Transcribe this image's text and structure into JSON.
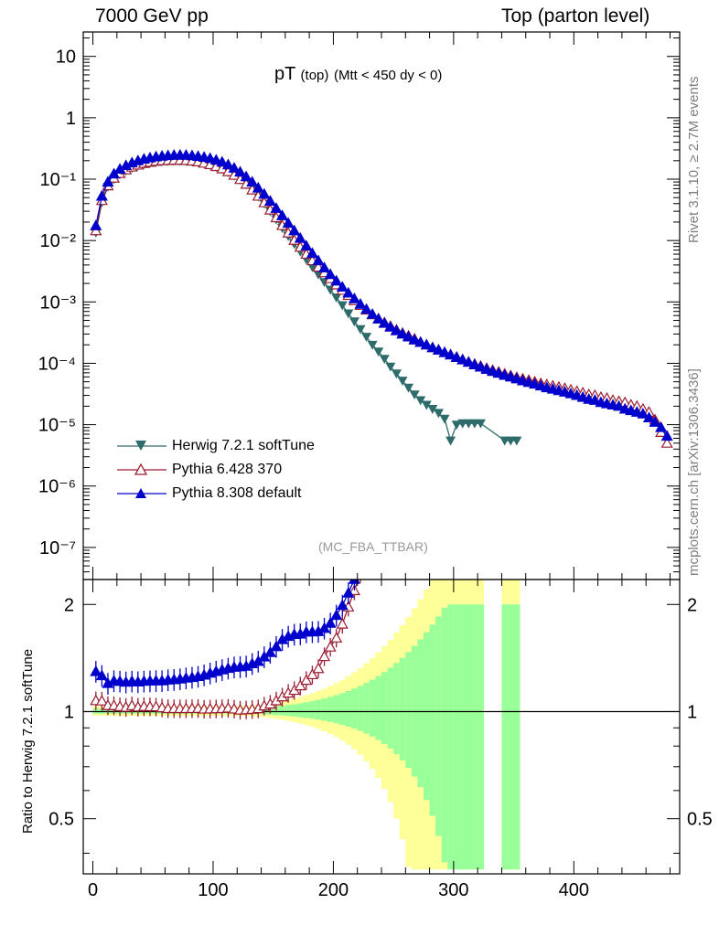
{
  "header": {
    "left": "7000 GeV pp",
    "right": "Top (parton level)"
  },
  "side_labels": {
    "top": "Rivet 3.1.10, ≥ 2.7M events",
    "bottom": "mcplots.cern.ch [arXiv:1306.3436]"
  },
  "plot_title": {
    "main": "pT",
    "sub1": "(top)",
    "sub2": "(Mtt < 450 dy < 0)"
  },
  "watermark": "(MC_FBA_TTBAR)",
  "ratio_ylabel": "Ratio to Herwig 7.2.1 softTune",
  "colors": {
    "herwig": "#2e6b6b",
    "pythia6": "#9b1b30",
    "pythia8": "#0000cc",
    "band_yellow": "#ffff99",
    "band_green": "#99ff99"
  },
  "chart_data": {
    "type": "line",
    "x_range": [
      -8,
      488
    ],
    "main": {
      "yscale": "log",
      "ylim": [
        3e-08,
        25
      ],
      "ticks": [
        {
          "value": 10,
          "label": "10"
        },
        {
          "value": 1,
          "label": "1"
        },
        {
          "value": 0.1,
          "label": "10⁻¹"
        },
        {
          "value": 0.01,
          "label": "10⁻²"
        },
        {
          "value": 0.001,
          "label": "10⁻³"
        },
        {
          "value": 0.0001,
          "label": "10⁻⁴"
        },
        {
          "value": 1e-05,
          "label": "10⁻⁵"
        },
        {
          "value": 1e-06,
          "label": "10⁻⁶"
        },
        {
          "value": 1e-07,
          "label": "10⁻⁷"
        }
      ]
    },
    "ratio": {
      "yscale": "log",
      "ylim": [
        0.35,
        2.35
      ],
      "ticks": [
        {
          "value": 2,
          "label": "2"
        },
        {
          "value": 1,
          "label": "1"
        },
        {
          "value": 0.5,
          "label": "0.5"
        }
      ]
    },
    "x_ticks": [
      0,
      100,
      200,
      300,
      400
    ],
    "legend": [
      {
        "key": "herwig",
        "label": "Herwig 7.2.1 softTune",
        "marker": "triangle-down-filled"
      },
      {
        "key": "pythia6",
        "label": "Pythia 6.428 370",
        "marker": "triangle-up-open"
      },
      {
        "key": "pythia8",
        "label": "Pythia 8.308 default",
        "marker": "triangle-up-filled"
      }
    ],
    "series": [
      {
        "name": "Herwig 7.2.1 softTune",
        "key": "herwig",
        "x": [
          2.5,
          7.5,
          12.5,
          17.5,
          22.5,
          27.5,
          32.5,
          37.5,
          42.5,
          47.5,
          52.5,
          57.5,
          62.5,
          67.5,
          72.5,
          77.5,
          82.5,
          87.5,
          92.5,
          97.5,
          102.5,
          107.5,
          112.5,
          117.5,
          122.5,
          127.5,
          132.5,
          137.5,
          142.5,
          147.5,
          152.5,
          157.5,
          162.5,
          167.5,
          172.5,
          177.5,
          182.5,
          187.5,
          192.5,
          197.5,
          202.5,
          207.5,
          212.5,
          217.5,
          222.5,
          227.5,
          232.5,
          237.5,
          242.5,
          247.5,
          252.5,
          257.5,
          262.5,
          267.5,
          272.5,
          277.5,
          282.5,
          287.5,
          292.5,
          297.5,
          302.5,
          307.5,
          312.5,
          317.5,
          322.5,
          342.5,
          347.5,
          352.5
        ],
        "y": [
          0.0135,
          0.042,
          0.075,
          0.1,
          0.12,
          0.138,
          0.152,
          0.165,
          0.175,
          0.183,
          0.19,
          0.195,
          0.198,
          0.2,
          0.2,
          0.198,
          0.194,
          0.188,
          0.18,
          0.17,
          0.158,
          0.145,
          0.13,
          0.114,
          0.098,
          0.082,
          0.066,
          0.052,
          0.04,
          0.03,
          0.022,
          0.016,
          0.0118,
          0.0088,
          0.0066,
          0.0049,
          0.0037,
          0.0028,
          0.0021,
          0.00158,
          0.00118,
          0.00088,
          0.00065,
          0.00048,
          0.00036,
          0.00027,
          0.0002,
          0.000155,
          0.000118,
          8.8e-05,
          6.8e-05,
          5.2e-05,
          4e-05,
          3.1e-05,
          2.5e-05,
          2.1e-05,
          1.8e-05,
          1.55e-05,
          1.25e-05,
          5.5e-06,
          1e-05,
          1.05e-05,
          1.05e-05,
          1.05e-05,
          1.05e-05,
          5.5e-06,
          5.5e-06,
          5.5e-06
        ],
        "yerr_rel": 0.05
      },
      {
        "name": "Pythia 6.428 370",
        "key": "pythia6",
        "x": [
          2.5,
          7.5,
          12.5,
          17.5,
          22.5,
          27.5,
          32.5,
          37.5,
          42.5,
          47.5,
          52.5,
          57.5,
          62.5,
          67.5,
          72.5,
          77.5,
          82.5,
          87.5,
          92.5,
          97.5,
          102.5,
          107.5,
          112.5,
          117.5,
          122.5,
          127.5,
          132.5,
          137.5,
          142.5,
          147.5,
          152.5,
          157.5,
          162.5,
          167.5,
          172.5,
          177.5,
          182.5,
          187.5,
          192.5,
          197.5,
          202.5,
          207.5,
          212.5,
          217.5,
          222.5,
          227.5,
          232.5,
          237.5,
          242.5,
          247.5,
          252.5,
          257.5,
          262.5,
          267.5,
          272.5,
          277.5,
          282.5,
          287.5,
          292.5,
          297.5,
          302.5,
          307.5,
          312.5,
          317.5,
          322.5,
          327.5,
          332.5,
          337.5,
          342.5,
          347.5,
          352.5,
          357.5,
          362.5,
          367.5,
          372.5,
          377.5,
          382.5,
          387.5,
          392.5,
          397.5,
          402.5,
          407.5,
          412.5,
          417.5,
          422.5,
          427.5,
          432.5,
          437.5,
          442.5,
          447.5,
          452.5,
          457.5,
          462.5,
          467.5,
          472.5,
          477.5
        ],
        "y": [
          0.0145,
          0.045,
          0.078,
          0.104,
          0.124,
          0.142,
          0.158,
          0.17,
          0.181,
          0.189,
          0.196,
          0.2,
          0.202,
          0.204,
          0.204,
          0.202,
          0.198,
          0.192,
          0.183,
          0.173,
          0.161,
          0.148,
          0.133,
          0.116,
          0.099,
          0.083,
          0.067,
          0.053,
          0.0415,
          0.0315,
          0.0236,
          0.0176,
          0.0133,
          0.0101,
          0.0078,
          0.006,
          0.0047,
          0.0037,
          0.003,
          0.0024,
          0.0019,
          0.00155,
          0.00128,
          0.00105,
          0.00088,
          0.00074,
          0.00062,
          0.00053,
          0.00046,
          0.0004,
          0.00035,
          0.00031,
          0.00028,
          0.00025,
          0.00022,
          0.0002,
          0.00018,
          0.000165,
          0.00015,
          0.000138,
          0.000126,
          0.000115,
          0.000105,
          9.7e-05,
          9e-05,
          8.3e-05,
          7.7e-05,
          7.2e-05,
          6.7e-05,
          6.3e-05,
          5.9e-05,
          5.6e-05,
          5.3e-05,
          5e-05,
          4.7e-05,
          4.5e-05,
          4.3e-05,
          4.1e-05,
          3.9e-05,
          3.7e-05,
          3.5e-05,
          3.3e-05,
          3.1e-05,
          3e-05,
          2.8e-05,
          2.7e-05,
          2.5e-05,
          2.4e-05,
          2.3e-05,
          2.1e-05,
          2e-05,
          1.8e-05,
          1.6e-05,
          1.2e-05,
          7.5e-06,
          5e-06
        ],
        "yerr_rel": 0.06
      },
      {
        "name": "Pythia 8.308 default",
        "key": "pythia8",
        "x": [
          2.5,
          7.5,
          12.5,
          17.5,
          22.5,
          27.5,
          32.5,
          37.5,
          42.5,
          47.5,
          52.5,
          57.5,
          62.5,
          67.5,
          72.5,
          77.5,
          82.5,
          87.5,
          92.5,
          97.5,
          102.5,
          107.5,
          112.5,
          117.5,
          122.5,
          127.5,
          132.5,
          137.5,
          142.5,
          147.5,
          152.5,
          157.5,
          162.5,
          167.5,
          172.5,
          177.5,
          182.5,
          187.5,
          192.5,
          197.5,
          202.5,
          207.5,
          212.5,
          217.5,
          222.5,
          227.5,
          232.5,
          237.5,
          242.5,
          247.5,
          252.5,
          257.5,
          262.5,
          267.5,
          272.5,
          277.5,
          282.5,
          287.5,
          292.5,
          297.5,
          302.5,
          307.5,
          312.5,
          317.5,
          322.5,
          327.5,
          332.5,
          337.5,
          342.5,
          347.5,
          352.5,
          357.5,
          362.5,
          367.5,
          372.5,
          377.5,
          382.5,
          387.5,
          392.5,
          397.5,
          402.5,
          407.5,
          412.5,
          417.5,
          422.5,
          427.5,
          432.5,
          437.5,
          442.5,
          447.5,
          452.5,
          457.5,
          462.5,
          467.5,
          472.5,
          477.5
        ],
        "y": [
          0.0175,
          0.053,
          0.09,
          0.122,
          0.146,
          0.167,
          0.185,
          0.2,
          0.213,
          0.223,
          0.232,
          0.238,
          0.243,
          0.246,
          0.247,
          0.246,
          0.242,
          0.236,
          0.228,
          0.218,
          0.205,
          0.19,
          0.172,
          0.152,
          0.131,
          0.11,
          0.09,
          0.072,
          0.057,
          0.044,
          0.0335,
          0.0255,
          0.0192,
          0.0145,
          0.0109,
          0.0082,
          0.0062,
          0.0047,
          0.0036,
          0.0028,
          0.0022,
          0.00175,
          0.0014,
          0.00113,
          0.00092,
          0.00076,
          0.00063,
          0.00053,
          0.00045,
          0.00039,
          0.00034,
          0.0003,
          0.00027,
          0.00024,
          0.00022,
          0.0002,
          0.00018,
          0.000165,
          0.00015,
          0.000137,
          0.000125,
          0.000114,
          0.000104,
          9.5e-05,
          8.7e-05,
          8e-05,
          7.4e-05,
          6.9e-05,
          6.4e-05,
          6e-05,
          5.6e-05,
          5.2e-05,
          4.9e-05,
          4.6e-05,
          4.3e-05,
          4e-05,
          3.8e-05,
          3.6e-05,
          3.4e-05,
          3.2e-05,
          3e-05,
          2.8e-05,
          2.6e-05,
          2.5e-05,
          2.3e-05,
          2.2e-05,
          2.1e-05,
          2e-05,
          1.8e-05,
          1.7e-05,
          1.6e-05,
          1.5e-05,
          1.3e-05,
          1.1e-05,
          9e-06,
          6.5e-06
        ],
        "yerr_rel": 0.07
      }
    ]
  }
}
